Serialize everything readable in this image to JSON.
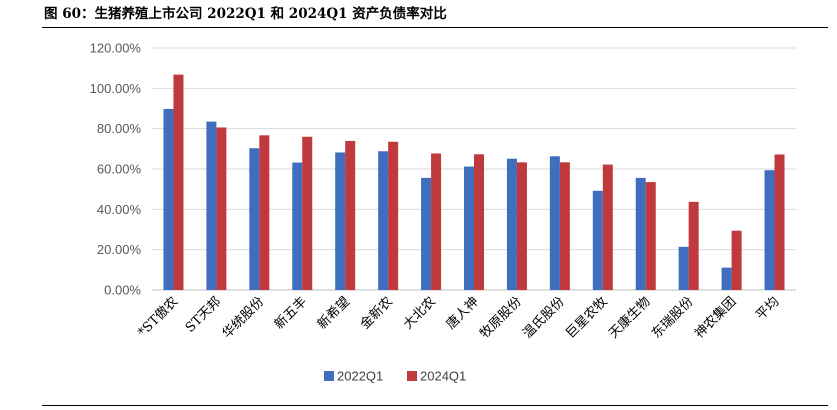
{
  "figure_title": "图 60：生猪养殖上市公司 2022Q1 和 2024Q1 资产负债率对比",
  "colors": {
    "s2022": "#3F6EBF",
    "s2024": "#C0393D",
    "grid": "#D9D9D9",
    "axis": "#BFBFBF"
  },
  "chart_data": {
    "type": "bar",
    "title": "",
    "xlabel": "",
    "ylabel": "",
    "ylim": [
      0,
      120
    ],
    "y_tick_step": 20,
    "y_tick_labels": [
      "0.00%",
      "20.00%",
      "40.00%",
      "60.00%",
      "80.00%",
      "100.00%",
      "120.00%"
    ],
    "grid": true,
    "legend": "bottom",
    "categories": [
      "*ST傲农",
      "ST天邦",
      "华统股份",
      "新五丰",
      "新希望",
      "金新农",
      "大北农",
      "唐人神",
      "牧原股份",
      "温氏股份",
      "巨星农牧",
      "天康生物",
      "东瑞股份",
      "神农集团",
      "平均"
    ],
    "series": [
      {
        "name": "2022Q1",
        "values": [
          89.8,
          83.5,
          70.3,
          63.2,
          68.2,
          68.8,
          55.6,
          61.2,
          65.1,
          66.3,
          49.2,
          55.6,
          21.4,
          11.1,
          59.4
        ]
      },
      {
        "name": "2024Q1",
        "values": [
          106.8,
          80.6,
          76.7,
          76.0,
          73.9,
          73.5,
          67.7,
          67.3,
          63.3,
          63.3,
          62.2,
          53.5,
          43.7,
          29.4,
          67.2
        ]
      }
    ]
  }
}
